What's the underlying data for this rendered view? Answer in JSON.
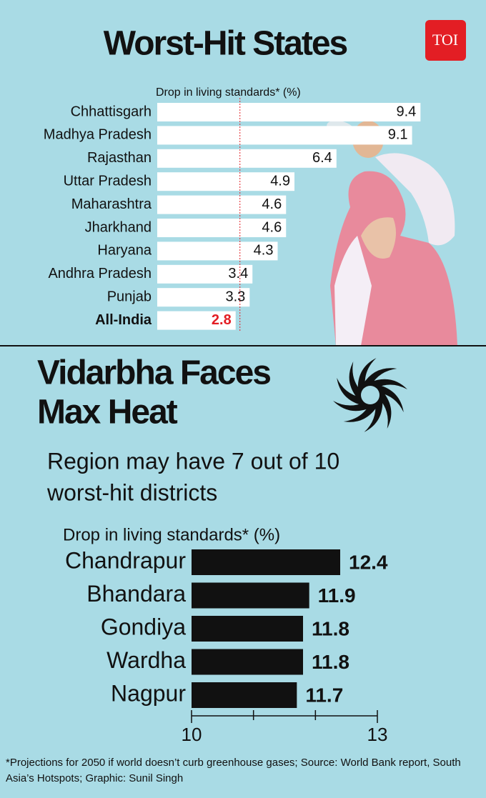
{
  "logo": "TOI",
  "chart_data": [
    {
      "type": "bar",
      "orientation": "horizontal",
      "title": "Worst-Hit States",
      "x_label": "Drop in living standards* (%)",
      "categories": [
        "Chhattisgarh",
        "Madhya Pradesh",
        "Rajasthan",
        "Uttar Pradesh",
        "Maharashtra",
        "Jharkhand",
        "Haryana",
        "Andhra Pradesh",
        "Punjab",
        "All-India"
      ],
      "values": [
        9.4,
        9.1,
        6.4,
        4.9,
        4.6,
        4.6,
        4.3,
        3.4,
        3.3,
        2.8
      ],
      "color": "#ffffff",
      "xlim": [
        0,
        9.8
      ],
      "highlight": {
        "index": 9,
        "color": "#e31e24"
      }
    },
    {
      "type": "bar",
      "orientation": "horizontal",
      "title": [
        "Vidarbha Faces",
        "Max Heat"
      ],
      "subtitle": [
        "Region may have 7 out of 10",
        "worst-hit districts"
      ],
      "x_label": "Drop in living standards* (%)",
      "categories": [
        "Chandrapur",
        "Bhandara",
        "Gondiya",
        "Wardha",
        "Nagpur"
      ],
      "values": [
        12.4,
        11.9,
        11.8,
        11.8,
        11.7
      ],
      "color": "#111111",
      "xlim": [
        10,
        13
      ],
      "xticks": [
        10,
        13
      ],
      "xminor_ticks": [
        11,
        12
      ]
    }
  ],
  "footnote": [
    "*Projections for 2050 if world doesn’t curb greenhouse gases; Source: World Bank report, South",
    "Asia’s Hotspots; Graphic: Sunil Singh"
  ]
}
